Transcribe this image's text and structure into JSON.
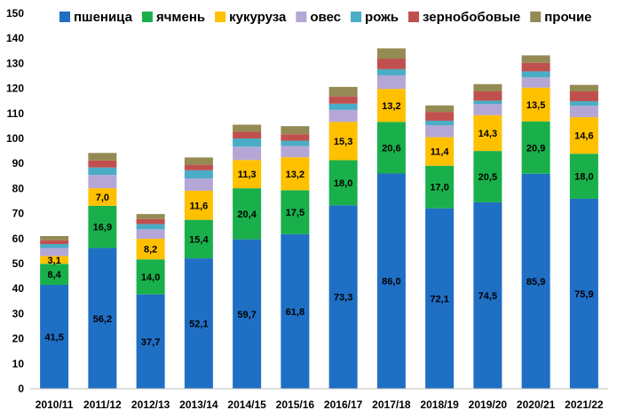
{
  "chart_data": {
    "type": "bar",
    "stacked": true,
    "categories": [
      "2010/11",
      "2011/12",
      "2012/13",
      "2013/14",
      "2014/15",
      "2015/16",
      "2016/17",
      "2017/18",
      "2018/19",
      "2019/20",
      "2020/21",
      "2021/22"
    ],
    "ylim": [
      0,
      150
    ],
    "yticks": [
      0,
      10,
      20,
      30,
      40,
      50,
      60,
      70,
      80,
      90,
      100,
      110,
      120,
      130,
      140,
      150
    ],
    "grid": false,
    "legend_position": "top",
    "series": [
      {
        "name": "пшеница",
        "color": "#1f6fc5",
        "values": [
          41.5,
          56.2,
          37.7,
          52.1,
          59.7,
          61.8,
          73.3,
          86.0,
          72.1,
          74.5,
          85.9,
          75.9
        ],
        "labels": [
          "41,5",
          "56,2",
          "37,7",
          "52,1",
          "59,7",
          "61,8",
          "73,3",
          "86,0",
          "72,1",
          "74,5",
          "85,9",
          "75,9"
        ]
      },
      {
        "name": "ячмень",
        "color": "#19b04b",
        "values": [
          8.4,
          16.9,
          14.0,
          15.4,
          20.4,
          17.5,
          18.0,
          20.6,
          17.0,
          20.5,
          20.9,
          18.0
        ],
        "labels": [
          "8,4",
          "16,9",
          "14,0",
          "15,4",
          "20,4",
          "17,5",
          "18,0",
          "20,6",
          "17,0",
          "20,5",
          "20,9",
          "18,0"
        ]
      },
      {
        "name": "кукуруза",
        "color": "#ffc000",
        "values": [
          3.1,
          7.0,
          8.2,
          11.6,
          11.3,
          13.2,
          15.3,
          13.2,
          11.4,
          14.3,
          13.5,
          14.6
        ],
        "labels": [
          "3,1",
          "7,0",
          "8,2",
          "11,6",
          "11,3",
          "13,2",
          "15,3",
          "13,2",
          "11,4",
          "14,3",
          "13,5",
          "14,6"
        ]
      },
      {
        "name": "овес",
        "color": "#b4a7d6",
        "values": [
          3.2,
          5.3,
          3.8,
          4.9,
          5.3,
          4.5,
          4.8,
          5.4,
          4.7,
          4.4,
          4.1,
          4.6
        ]
      },
      {
        "name": "рожь",
        "color": "#4bacc6",
        "values": [
          1.6,
          3.0,
          2.1,
          3.3,
          3.3,
          2.1,
          2.5,
          2.5,
          1.9,
          1.4,
          2.4,
          1.8
        ]
      },
      {
        "name": "зернобобовые",
        "color": "#c0504d",
        "values": [
          1.5,
          2.8,
          2.0,
          2.2,
          2.7,
          2.6,
          2.9,
          4.2,
          3.5,
          3.7,
          3.4,
          3.9
        ]
      },
      {
        "name": "прочие",
        "color": "#948a54",
        "values": [
          1.7,
          3.0,
          2.0,
          2.9,
          2.8,
          3.2,
          3.8,
          4.1,
          2.6,
          2.9,
          3.0,
          2.6
        ]
      }
    ]
  }
}
